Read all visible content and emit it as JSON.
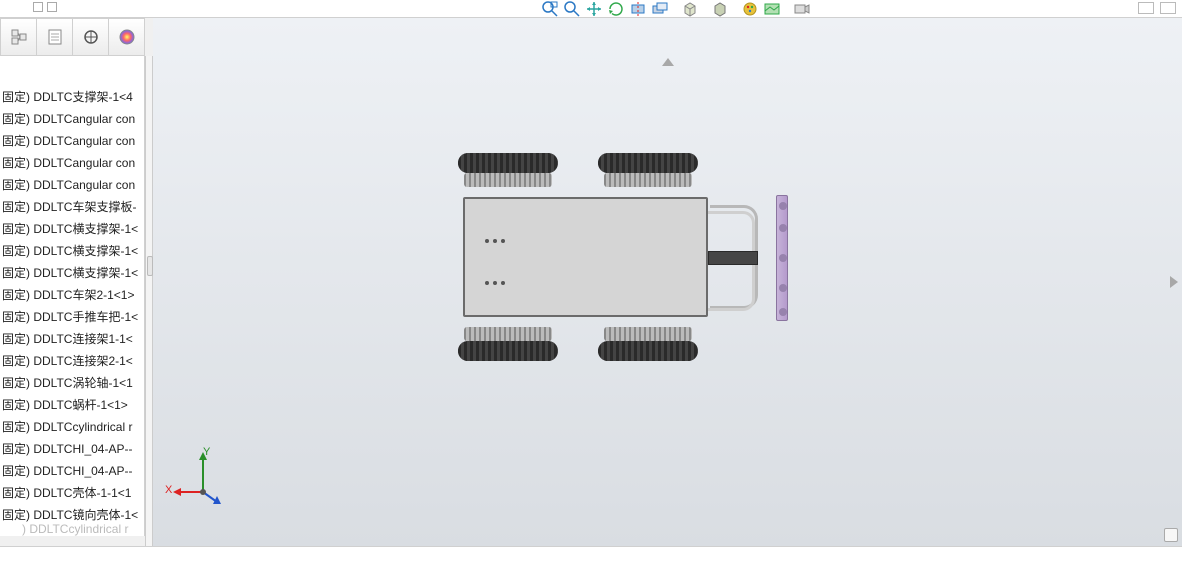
{
  "window": {
    "title": "",
    "min": "",
    "max": "",
    "close": ""
  },
  "toolstrip": {
    "icons": [
      "zoom-area",
      "zoom-fit",
      "pan",
      "rotate",
      "section",
      "prev-view",
      "box",
      "display-style",
      "appearance",
      "scene",
      "camera"
    ],
    "colors": {
      "blue": "#2b78c4",
      "green": "#2fa84a",
      "orange": "#e08a2e",
      "teal": "#2aa5a0",
      "yellow": "#e7c23b",
      "cube_top": "#dfe5cc",
      "cube_front": "#c8d1b4",
      "cube_side": "#b7c1a1"
    }
  },
  "panel_tabs": {
    "t1": "feature-tree",
    "t2": "property-manager",
    "t3": "configuration",
    "t4": "appearances"
  },
  "tree": {
    "items": [
      "固定) DDLTC支撑架-1<4",
      "固定) DDLTCangular con",
      "固定) DDLTCangular con",
      "固定) DDLTCangular con",
      "固定) DDLTCangular con",
      "固定) DDLTC车架支撑板-",
      "固定) DDLTC横支撑架-1<",
      "固定) DDLTC横支撑架-1<",
      "固定) DDLTC横支撑架-1<",
      "固定) DDLTC车架2-1<1>",
      "固定) DDLTC手推车把-1<",
      "固定) DDLTC连接架1-1<",
      "固定) DDLTC连接架2-1<",
      "固定) DDLTC涡轮轴-1<1",
      "固定) DDLTC蜗杆-1<1>",
      "固定) DDLTCcylindrical r",
      "固定) DDLTCHI_04-AP--",
      "固定) DDLTCHI_04-AP--",
      "固定) DDLTC壳体-1-1<1",
      "固定) DDLTC镜向壳体-1<"
    ],
    "tail": ") DDLTCcylindrical r"
  },
  "triad": {
    "x": "X",
    "y": "Y",
    "z": ""
  },
  "triad_colors": {
    "x": "#d22",
    "y": "#2a8f2a",
    "z": "#2255cc"
  },
  "viewport": {
    "bg_top": "#eef1f5",
    "bg_bottom": "#d9dde2"
  },
  "model": {
    "chassis_color": "#d5d5d5",
    "chassis_border": "#6b6b6b",
    "wheel_color": "#333333",
    "gear_color": "#999999",
    "handle_color": "#b8b8b8",
    "tongue_color": "#464646",
    "endbar_color": "#b49acc"
  }
}
